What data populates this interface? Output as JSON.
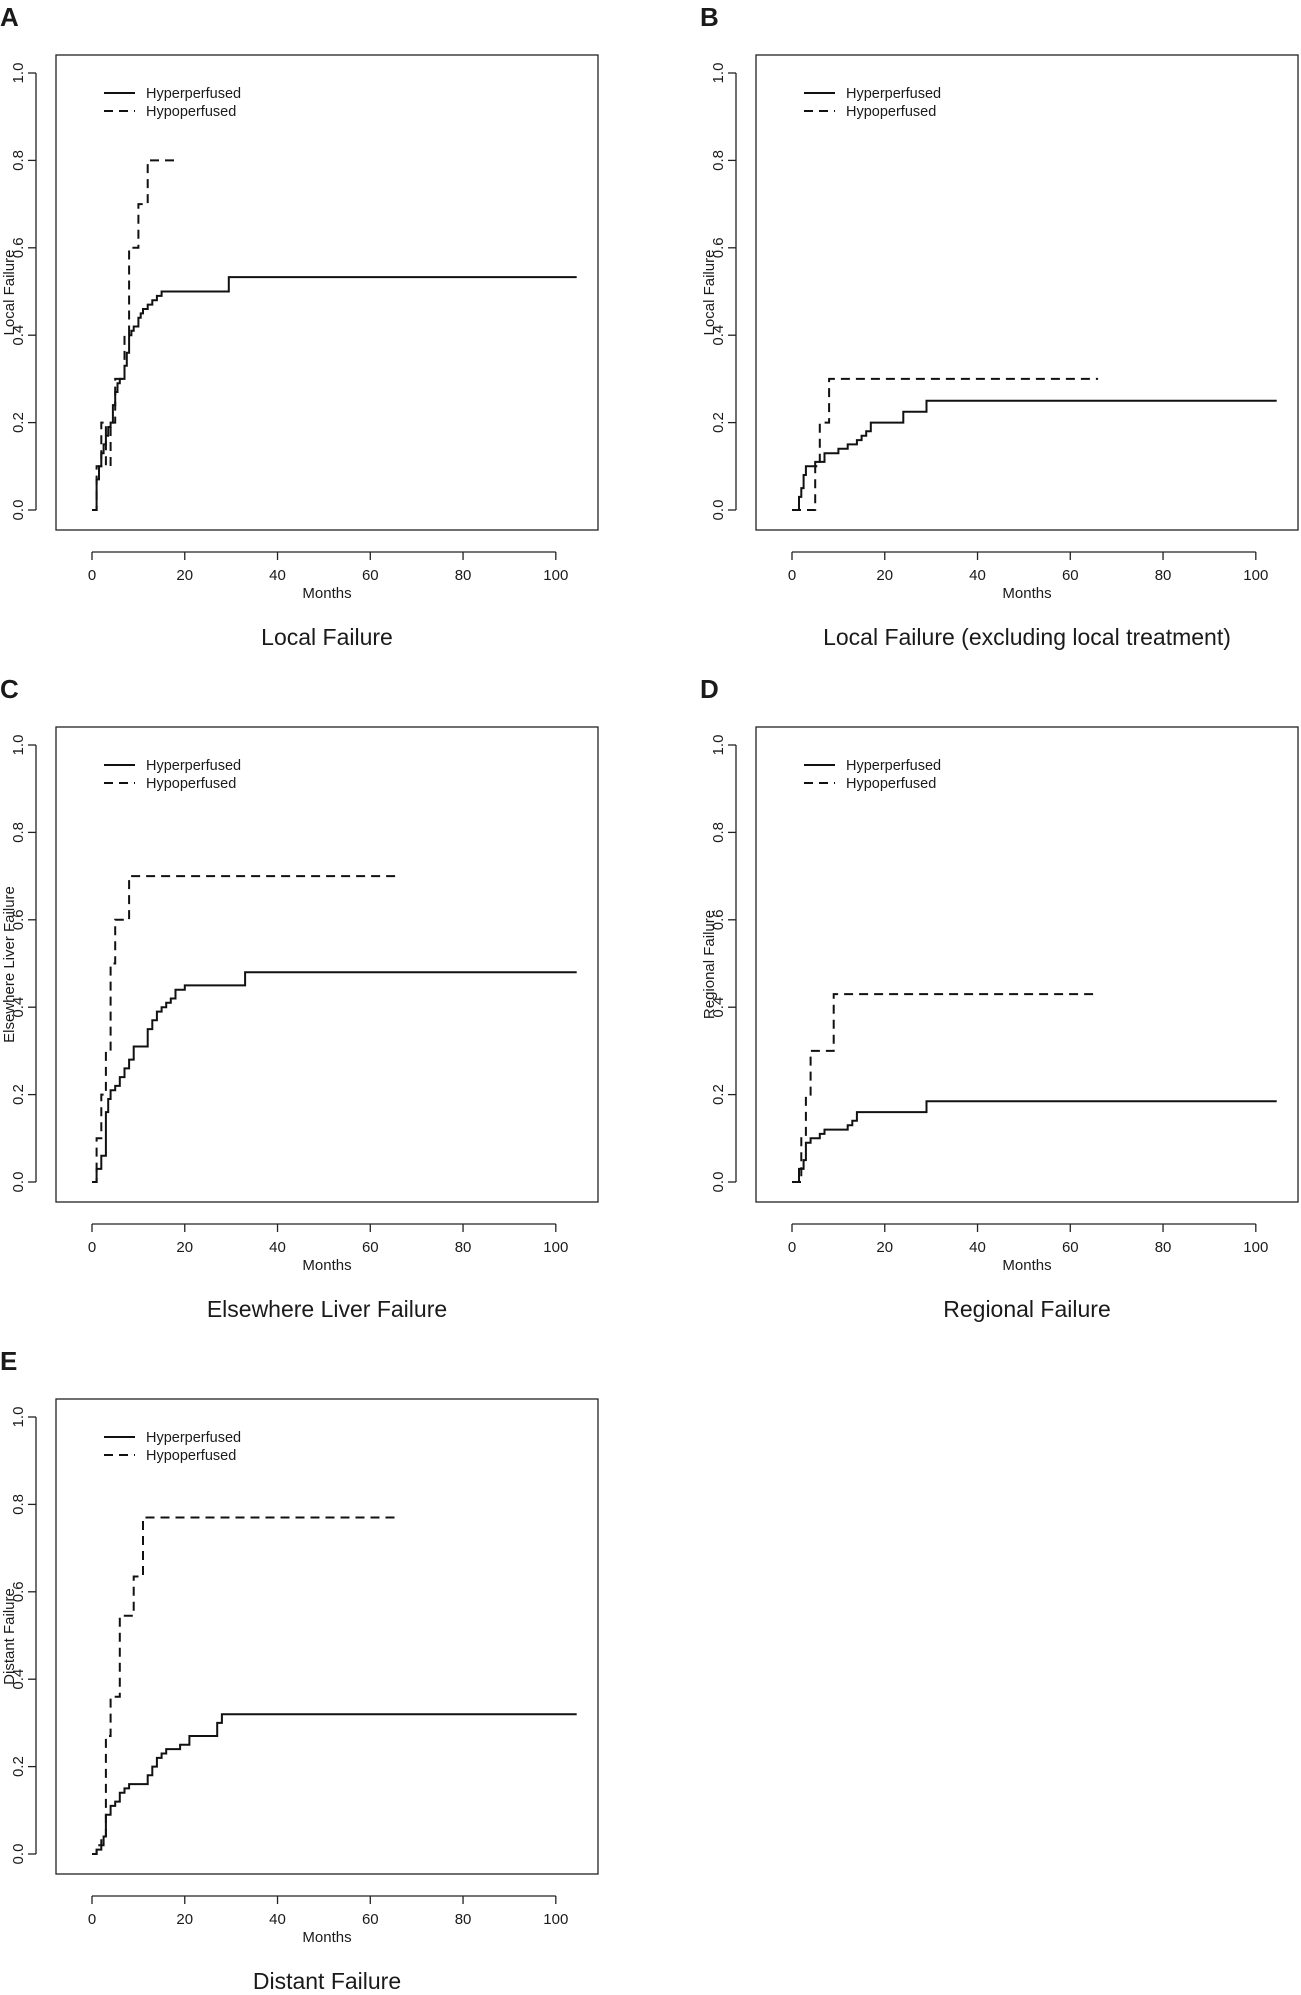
{
  "figure_title": "",
  "colors": {
    "line": "#111111",
    "axis": "#222222",
    "background": "#ffffff"
  },
  "chart_data": [
    {
      "panel": "A",
      "type": "line",
      "title": "Local Failure",
      "xlabel": "Months",
      "ylabel": "Local Failure",
      "xlim": [
        0,
        105
      ],
      "ylim": [
        0,
        1
      ],
      "xticks": [
        0,
        20,
        40,
        60,
        80,
        100
      ],
      "xtick_labels": [
        "0",
        "20",
        "40",
        "60",
        "80",
        "100"
      ],
      "yticks": [
        0,
        0.2,
        0.4,
        0.6,
        0.8,
        1.0
      ],
      "ytick_labels": [
        "0.0",
        "0.2",
        "0.4",
        "0.6",
        "0.8",
        "1.0"
      ],
      "legend_position": "top-left",
      "series": [
        {
          "name": "Hyperperfused",
          "style": "solid",
          "x": [
            0,
            1,
            1.5,
            2,
            2.5,
            3,
            3.5,
            4,
            4.5,
            5,
            5.5,
            6,
            7,
            7.5,
            8,
            8.5,
            9,
            10,
            10.5,
            11,
            12,
            13,
            14,
            15,
            16,
            29.5,
            104.5
          ],
          "y": [
            0,
            0.07,
            0.1,
            0.13,
            0.15,
            0.17,
            0.19,
            0.2,
            0.24,
            0.27,
            0.29,
            0.3,
            0.33,
            0.36,
            0.4,
            0.41,
            0.42,
            0.44,
            0.45,
            0.46,
            0.47,
            0.48,
            0.49,
            0.5,
            0.5,
            0.533,
            0.533
          ]
        },
        {
          "name": "Hypoperfused",
          "style": "dashed",
          "x": [
            0,
            1,
            2,
            3,
            4,
            5,
            6,
            7,
            8,
            9,
            10,
            12,
            14,
            18
          ],
          "y": [
            0,
            0.1,
            0.2,
            0.1,
            0.2,
            0.3,
            0.3,
            0.4,
            0.6,
            0.6,
            0.7,
            0.8,
            0.8,
            0.8
          ]
        }
      ]
    },
    {
      "panel": "B",
      "type": "line",
      "title": "Local Failure (excluding local treatment)",
      "xlabel": "Months",
      "ylabel": "Local Failure",
      "xlim": [
        0,
        105
      ],
      "ylim": [
        0,
        1
      ],
      "xticks": [
        0,
        20,
        40,
        60,
        80,
        100
      ],
      "xtick_labels": [
        "0",
        "20",
        "40",
        "60",
        "80",
        "100"
      ],
      "yticks": [
        0,
        0.2,
        0.4,
        0.6,
        0.8,
        1.0
      ],
      "ytick_labels": [
        "0.0",
        "0.2",
        "0.4",
        "0.6",
        "0.8",
        "1.0"
      ],
      "legend_position": "top-left",
      "series": [
        {
          "name": "Hyperperfused",
          "style": "solid",
          "x": [
            0,
            1.5,
            2,
            2.5,
            3,
            5,
            7,
            10,
            12,
            14,
            15,
            16,
            17,
            24,
            29,
            104.5
          ],
          "y": [
            0,
            0.03,
            0.05,
            0.08,
            0.1,
            0.11,
            0.13,
            0.14,
            0.15,
            0.16,
            0.17,
            0.18,
            0.2,
            0.225,
            0.25,
            0.25
          ]
        },
        {
          "name": "Hypoperfused",
          "style": "dashed",
          "x": [
            0,
            4,
            5,
            6,
            7,
            8,
            66
          ],
          "y": [
            0,
            0,
            0.1,
            0.2,
            0.2,
            0.3,
            0.3
          ]
        }
      ]
    },
    {
      "panel": "C",
      "type": "line",
      "title": "Elsewhere Liver Failure",
      "xlabel": "Months",
      "ylabel": "Elsewhere Liver Failure",
      "xlim": [
        0,
        105
      ],
      "ylim": [
        0,
        1
      ],
      "xticks": [
        0,
        20,
        40,
        60,
        80,
        100
      ],
      "xtick_labels": [
        "0",
        "20",
        "40",
        "60",
        "80",
        "100"
      ],
      "yticks": [
        0,
        0.2,
        0.4,
        0.6,
        0.8,
        1.0
      ],
      "ytick_labels": [
        "0.0",
        "0.2",
        "0.4",
        "0.6",
        "0.8",
        "1.0"
      ],
      "legend_position": "top-left",
      "series": [
        {
          "name": "Hyperperfused",
          "style": "solid",
          "x": [
            0,
            1,
            2,
            3,
            3.5,
            4,
            5,
            6,
            7,
            8,
            9,
            12,
            13,
            14,
            15,
            16,
            17,
            18,
            20,
            33,
            104.5
          ],
          "y": [
            0,
            0.03,
            0.06,
            0.16,
            0.19,
            0.21,
            0.22,
            0.24,
            0.26,
            0.28,
            0.31,
            0.35,
            0.37,
            0.39,
            0.4,
            0.41,
            0.42,
            0.44,
            0.45,
            0.48,
            0.48
          ]
        },
        {
          "name": "Hypoperfused",
          "style": "dashed",
          "x": [
            0,
            1,
            2,
            3,
            4,
            5,
            6,
            8,
            66
          ],
          "y": [
            0,
            0.1,
            0.2,
            0.3,
            0.5,
            0.6,
            0.6,
            0.7,
            0.7
          ]
        }
      ]
    },
    {
      "panel": "D",
      "type": "line",
      "title": "Regional Failure",
      "xlabel": "Months",
      "ylabel": "Regional Failure",
      "xlim": [
        0,
        105
      ],
      "ylim": [
        0,
        1
      ],
      "xticks": [
        0,
        20,
        40,
        60,
        80,
        100
      ],
      "xtick_labels": [
        "0",
        "20",
        "40",
        "60",
        "80",
        "100"
      ],
      "yticks": [
        0,
        0.2,
        0.4,
        0.6,
        0.8,
        1.0
      ],
      "ytick_labels": [
        "0.0",
        "0.2",
        "0.4",
        "0.6",
        "0.8",
        "1.0"
      ],
      "legend_position": "top-left",
      "series": [
        {
          "name": "Hyperperfused",
          "style": "solid",
          "x": [
            0,
            1.5,
            2.5,
            3,
            4,
            6,
            7,
            12,
            13,
            14,
            29,
            104.5
          ],
          "y": [
            0,
            0.03,
            0.05,
            0.09,
            0.1,
            0.11,
            0.12,
            0.13,
            0.14,
            0.16,
            0.185,
            0.185
          ]
        },
        {
          "name": "Hypoperfused",
          "style": "dashed",
          "x": [
            0,
            2,
            3,
            4,
            9,
            66
          ],
          "y": [
            0,
            0.1,
            0.2,
            0.3,
            0.43,
            0.43
          ]
        }
      ]
    },
    {
      "panel": "E",
      "type": "line",
      "title": "Distant Failure",
      "xlabel": "Months",
      "ylabel": "Distant Failure",
      "xlim": [
        0,
        105
      ],
      "ylim": [
        0,
        1
      ],
      "xticks": [
        0,
        20,
        40,
        60,
        80,
        100
      ],
      "xtick_labels": [
        "0",
        "20",
        "40",
        "60",
        "80",
        "100"
      ],
      "yticks": [
        0,
        0.2,
        0.4,
        0.6,
        0.8,
        1.0
      ],
      "ytick_labels": [
        "0.0",
        "0.2",
        "0.4",
        "0.6",
        "0.8",
        "1.0"
      ],
      "legend_position": "top-left",
      "series": [
        {
          "name": "Hyperperfused",
          "style": "solid",
          "x": [
            0,
            1,
            2,
            2.5,
            3,
            4,
            5,
            6,
            7,
            8,
            12,
            13,
            14,
            15,
            16,
            19,
            21,
            27,
            28,
            104.5
          ],
          "y": [
            0,
            0.01,
            0.02,
            0.04,
            0.09,
            0.11,
            0.12,
            0.14,
            0.15,
            0.16,
            0.18,
            0.2,
            0.22,
            0.23,
            0.24,
            0.25,
            0.27,
            0.3,
            0.32,
            0.32
          ]
        },
        {
          "name": "Hypoperfused",
          "style": "dashed",
          "x": [
            0,
            1,
            2,
            3,
            4,
            5,
            6,
            7,
            9,
            10,
            11,
            66
          ],
          "y": [
            0,
            0.02,
            0.04,
            0.27,
            0.36,
            0.36,
            0.545,
            0.545,
            0.635,
            0.635,
            0.77,
            0.77
          ]
        }
      ]
    }
  ]
}
